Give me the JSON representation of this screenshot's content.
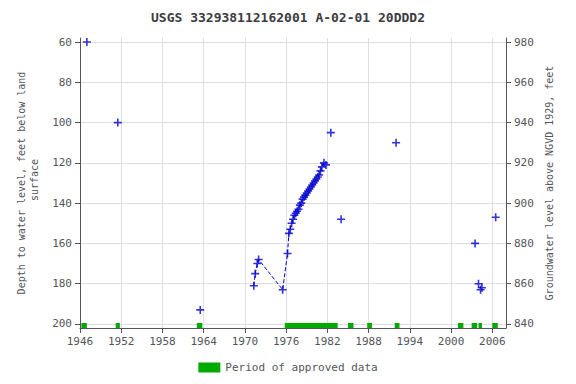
{
  "chart_data": {
    "type": "scatter",
    "title": "USGS 332938112162001 A-02-01 20DDD2",
    "ylabel": "Depth to water level, feet below land\n surface",
    "y2label": "Groundwater level above NGVD 1929, feet",
    "xlim": [
      1946,
      2008
    ],
    "ylim": [
      202,
      58
    ],
    "y2lim": [
      838,
      982
    ],
    "xticks": [
      1946,
      1952,
      1958,
      1964,
      1970,
      1976,
      1982,
      1988,
      1994,
      2000,
      2006
    ],
    "yticks": [
      60,
      80,
      100,
      120,
      140,
      160,
      180,
      200
    ],
    "y2ticks": [
      840,
      860,
      880,
      900,
      920,
      940,
      960,
      980
    ],
    "grid": true,
    "legend": "bottom",
    "series": [
      {
        "type": "scatter",
        "color": "#0000cc",
        "marker": "plus",
        "x": [
          1947.0,
          1951.5,
          1963.5,
          1971.3,
          1971.5,
          1971.8,
          1972.0,
          1975.5,
          1976.2,
          1976.4,
          1976.6,
          1976.8,
          1977.0,
          1977.2,
          1977.4,
          1977.6,
          1977.8,
          1978.0,
          1978.2,
          1978.4,
          1978.6,
          1978.8,
          1979.0,
          1979.2,
          1979.4,
          1979.6,
          1979.8,
          1980.0,
          1980.2,
          1980.4,
          1980.6,
          1980.8,
          1981.0,
          1981.2,
          1981.5,
          1981.8,
          1982.5,
          1984.0,
          1992.0,
          2003.5,
          2004.0,
          2004.3,
          2004.5,
          2006.5
        ],
        "values": [
          60,
          100,
          193,
          181,
          175,
          170,
          168,
          183,
          165,
          155,
          153,
          150,
          148,
          146,
          145,
          144,
          143,
          141,
          140,
          138,
          137,
          136,
          135,
          134,
          133,
          132,
          131,
          130,
          129,
          128,
          127,
          126,
          124,
          122,
          120,
          121,
          105,
          148,
          110,
          160,
          180,
          183,
          182,
          147
        ]
      },
      {
        "type": "line",
        "color": "#0000cc",
        "line_style": "dashed",
        "x": [
          1971.3,
          1971.5,
          1971.8,
          1972.0,
          1975.5,
          1976.2,
          1976.4,
          1976.6,
          1976.8,
          1977.0,
          1977.2,
          1977.4,
          1977.6,
          1977.8,
          1978.0,
          1978.2,
          1978.4,
          1978.6,
          1978.8,
          1979.0,
          1979.2,
          1979.4,
          1979.6,
          1979.8,
          1980.0,
          1980.2,
          1980.4,
          1980.6,
          1980.8,
          1981.0,
          1981.2,
          1981.5,
          1981.8
        ],
        "values": [
          181,
          175,
          170,
          168,
          183,
          165,
          155,
          153,
          150,
          148,
          146,
          145,
          144,
          143,
          141,
          140,
          138,
          137,
          136,
          135,
          134,
          133,
          132,
          131,
          130,
          129,
          128,
          127,
          126,
          124,
          122,
          120,
          121
        ]
      },
      {
        "type": "band",
        "name": "Period of approved data",
        "color": "#00aa00",
        "periods": [
          [
            1946.2,
            1947.0
          ],
          [
            1951.2,
            1951.8
          ],
          [
            1963.0,
            1963.8
          ],
          [
            1975.8,
            1983.5
          ],
          [
            1985.0,
            1985.8
          ],
          [
            1987.8,
            1988.5
          ],
          [
            1991.8,
            1992.5
          ],
          [
            2001.0,
            2001.8
          ],
          [
            2003.0,
            2003.8
          ],
          [
            2004.0,
            2004.5
          ],
          [
            2006.0,
            2006.8
          ]
        ]
      }
    ]
  }
}
